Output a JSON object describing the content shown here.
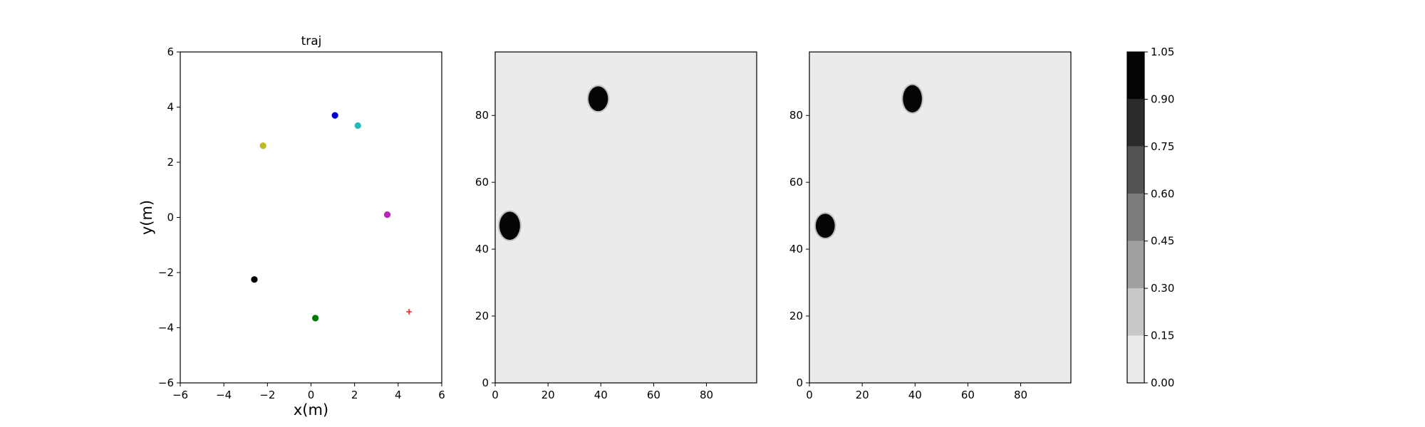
{
  "chart_data": [
    {
      "type": "scatter",
      "title": "traj",
      "xlabel": "x(m)",
      "ylabel": "y(m)",
      "xlim": [
        -6,
        6
      ],
      "ylim": [
        -6,
        6
      ],
      "xticks": [
        -6,
        -4,
        -2,
        0,
        2,
        4,
        6
      ],
      "yticks": [
        -6,
        -4,
        -2,
        0,
        2,
        4,
        6
      ],
      "grid": false,
      "points": [
        {
          "x": 1.1,
          "y": 3.7,
          "color": "#0000cc",
          "marker": "dot"
        },
        {
          "x": 2.15,
          "y": 3.33,
          "color": "#22bbbb",
          "marker": "dot"
        },
        {
          "x": -2.2,
          "y": 2.6,
          "color": "#bbbb22",
          "marker": "dot"
        },
        {
          "x": 3.5,
          "y": 0.1,
          "color": "#bb22bb",
          "marker": "dot"
        },
        {
          "x": -2.6,
          "y": -2.25,
          "color": "#000000",
          "marker": "dot"
        },
        {
          "x": 0.2,
          "y": -3.65,
          "color": "#007a00",
          "marker": "dot"
        },
        {
          "x": 4.5,
          "y": -3.42,
          "color": "#ff0000",
          "marker": "plus"
        }
      ]
    },
    {
      "type": "heatmap",
      "title": "",
      "xlim": [
        0,
        99
      ],
      "ylim": [
        0,
        99
      ],
      "xticks": [
        0,
        20,
        40,
        60,
        80
      ],
      "yticks": [
        0,
        20,
        40,
        60,
        80
      ],
      "background_value": 0.05,
      "blobs": [
        {
          "cx": 39,
          "cy": 85,
          "rx": 3.7,
          "ry": 3.7,
          "value": 1.0
        },
        {
          "cx": 5.5,
          "cy": 47,
          "rx": 3.9,
          "ry": 4.2,
          "value": 1.0
        }
      ]
    },
    {
      "type": "heatmap",
      "title": "",
      "xlim": [
        0,
        99
      ],
      "ylim": [
        0,
        99
      ],
      "xticks": [
        0,
        20,
        40,
        60,
        80
      ],
      "yticks": [
        0,
        20,
        40,
        60,
        80
      ],
      "background_value": 0.05,
      "blobs": [
        {
          "cx": 39,
          "cy": 85,
          "rx": 3.6,
          "ry": 4.1,
          "value": 1.0
        },
        {
          "cx": 6,
          "cy": 47,
          "rx": 3.6,
          "ry": 3.6,
          "value": 1.0
        }
      ]
    },
    {
      "type": "colorbar",
      "levels": [
        0.0,
        0.15,
        0.3,
        0.45,
        0.6,
        0.75,
        0.9,
        1.05
      ],
      "tick_labels": [
        "0.00",
        "0.15",
        "0.30",
        "0.45",
        "0.60",
        "0.75",
        "0.90",
        "1.05"
      ],
      "colors": [
        "#ebebeb",
        "#c8c8c8",
        "#a0a0a0",
        "#7c7c7c",
        "#545454",
        "#2c2c2c",
        "#050505"
      ]
    }
  ]
}
